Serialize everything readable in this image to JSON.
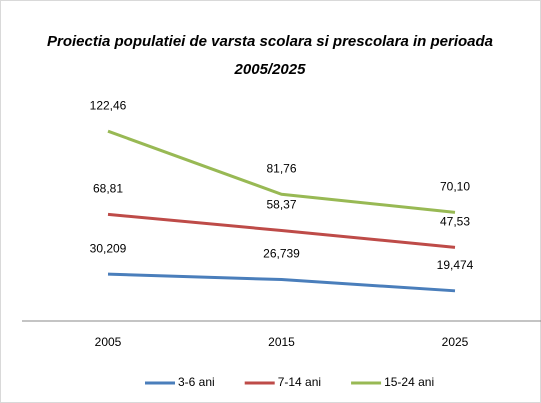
{
  "chart_data": {
    "type": "line",
    "title": "Proiectia populatiei de varsta scolara si prescolara in perioada 2005/2025",
    "categories": [
      "2005",
      "2015",
      "2025"
    ],
    "series": [
      {
        "name": "3-6 ani",
        "color": "#4a7ebb",
        "values": [
          30.209,
          26.739,
          19.474
        ],
        "value_labels": [
          "30,209",
          "26,739",
          "19,474"
        ]
      },
      {
        "name": "7-14 ani",
        "color": "#be4b48",
        "values": [
          68.81,
          58.37,
          47.53
        ],
        "value_labels": [
          "68,81",
          "58,37",
          "47,53"
        ]
      },
      {
        "name": "15-24 ani",
        "color": "#98b954",
        "values": [
          122.46,
          81.76,
          70.1
        ],
        "value_labels": [
          "122,46",
          "81,76",
          "70,10"
        ]
      }
    ],
    "ylim": [
      0,
      140
    ],
    "legend": "bottom"
  }
}
